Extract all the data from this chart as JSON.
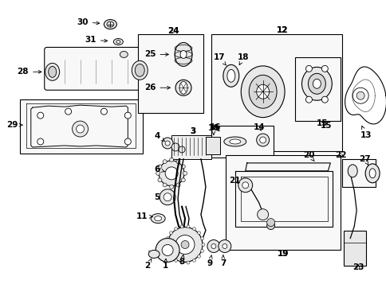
{
  "bg_color": "#ffffff",
  "fig_width": 4.85,
  "fig_height": 3.57,
  "dpi": 100
}
